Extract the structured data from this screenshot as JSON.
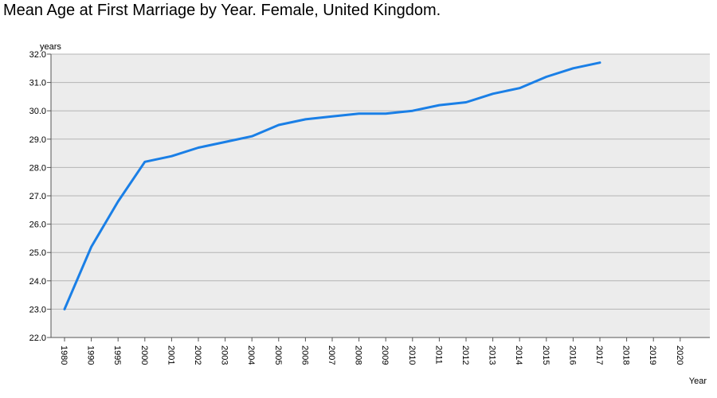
{
  "chart_data": {
    "type": "line",
    "title": "Mean Age at First Marriage by Year. Female, United Kingdom.",
    "xlabel": "Year",
    "ylabel": "years",
    "ylim": [
      22.0,
      32.0
    ],
    "yticks": [
      "22.0",
      "23.0",
      "24.0",
      "25.0",
      "26.0",
      "27.0",
      "28.0",
      "29.0",
      "30.0",
      "31.0",
      "32.0"
    ],
    "categories": [
      "1980",
      "1990",
      "1995",
      "2000",
      "2001",
      "2002",
      "2003",
      "2004",
      "2005",
      "2006",
      "2007",
      "2008",
      "2009",
      "2010",
      "2011",
      "2012",
      "2013",
      "2014",
      "2015",
      "2016",
      "2017",
      "2018",
      "2019",
      "2020"
    ],
    "series": [
      {
        "name": "Female, United Kingdom",
        "color": "#1a7fe6",
        "values": [
          23.0,
          25.2,
          26.8,
          28.2,
          28.4,
          28.7,
          28.9,
          29.1,
          29.5,
          29.7,
          29.8,
          29.9,
          29.9,
          30.0,
          30.2,
          30.3,
          30.6,
          30.8,
          31.2,
          31.5,
          31.7,
          null,
          null,
          null
        ]
      }
    ],
    "plot_background": "#ececec",
    "grid": true
  }
}
